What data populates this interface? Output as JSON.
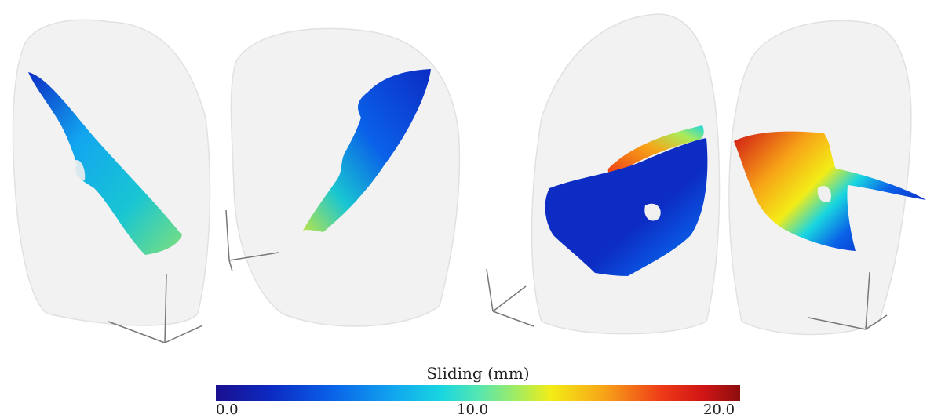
{
  "colorbar": {
    "title": "Sliding (mm)",
    "ticks": [
      "0.0",
      "10.0",
      "20.0"
    ],
    "min": 0.0,
    "max": 20.0,
    "colormap": "jet"
  },
  "panels": [
    {
      "name": "lung-view-1"
    },
    {
      "name": "lung-view-2"
    },
    {
      "name": "lung-view-3"
    },
    {
      "name": "lung-view-4"
    }
  ],
  "colors": {
    "lung_fill": "#f0f0f0",
    "lung_edge": "#dcdcdc",
    "axes": "#777777"
  }
}
